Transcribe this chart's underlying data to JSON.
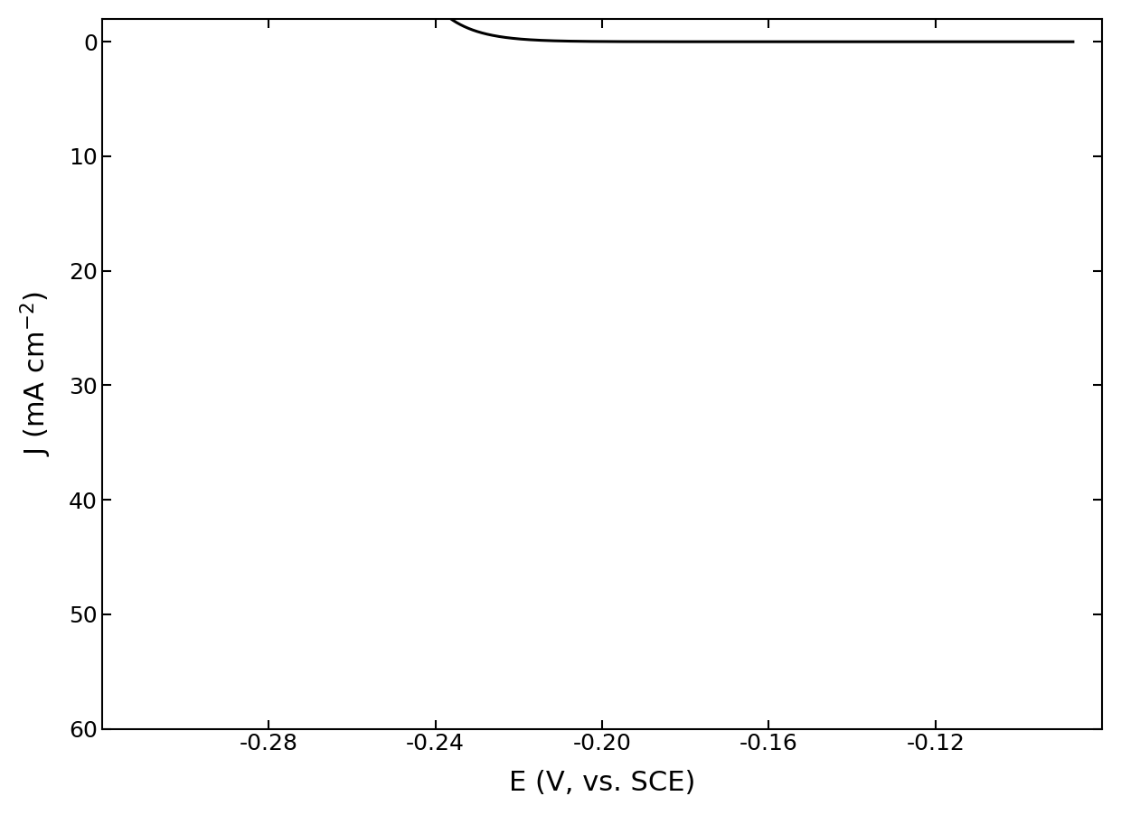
{
  "title": "",
  "xlabel": "E (V, vs. SCE)",
  "ylabel": "J (mA cm$^{-2}$)",
  "xlim": [
    -0.32,
    -0.08
  ],
  "ylim": [
    60,
    -2
  ],
  "xticks": [
    -0.28,
    -0.24,
    -0.2,
    -0.16,
    -0.12
  ],
  "yticks": [
    0,
    10,
    20,
    30,
    40,
    50,
    60
  ],
  "line_color": "#000000",
  "line_width": 2.2,
  "background_color": "#ffffff",
  "xlabel_fontsize": 22,
  "ylabel_fontsize": 22,
  "tick_fontsize": 18,
  "E_half": -0.262,
  "J_lim": -58.5,
  "k": 130
}
